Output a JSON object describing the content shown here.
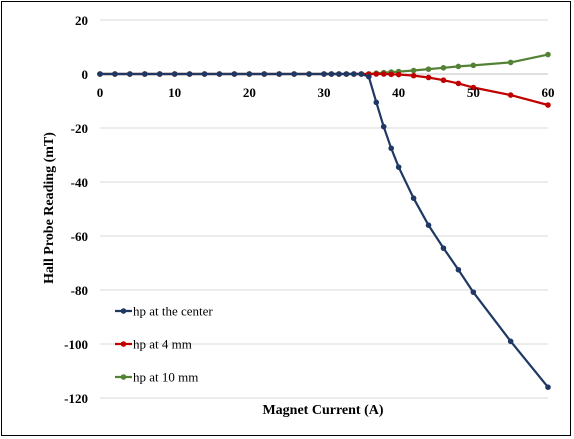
{
  "chart_data": {
    "type": "line",
    "xlabel": "Magnet Current (A)",
    "ylabel": "Hall Probe Reading (mT)",
    "xlim": [
      0,
      60
    ],
    "ylim": [
      -120,
      20
    ],
    "xticks": [
      "0",
      "10",
      "20",
      "30",
      "40",
      "50",
      "60"
    ],
    "yticks": [
      "20",
      "0",
      "-20",
      "-40",
      "-60",
      "-80",
      "-100",
      "-120"
    ],
    "grid": "horizontal",
    "legend_placement": "lower-left",
    "series": [
      {
        "name": "hp at the center",
        "color": "#1f3864",
        "x": [
          0,
          2,
          4,
          6,
          8,
          10,
          12,
          14,
          16,
          18,
          20,
          22,
          24,
          26,
          28,
          30,
          31,
          32,
          33,
          34,
          35,
          36,
          37,
          38,
          39,
          40,
          42,
          44,
          46,
          48,
          50,
          55,
          60
        ],
        "y": [
          0,
          0,
          0,
          0,
          0,
          0,
          0,
          0,
          0,
          0,
          0,
          0,
          0,
          0,
          0,
          0,
          0,
          0,
          0,
          0,
          0,
          -1,
          -10.5,
          -19.5,
          -27.5,
          -34.5,
          -46,
          -56,
          -64.5,
          -72.5,
          -80.8,
          -99,
          -116
        ]
      },
      {
        "name": "hp at 4 mm",
        "color": "#c00000",
        "x": [
          0,
          2,
          4,
          6,
          8,
          10,
          12,
          14,
          16,
          18,
          20,
          22,
          24,
          26,
          28,
          30,
          31,
          32,
          33,
          34,
          35,
          36,
          37,
          38,
          39,
          40,
          42,
          44,
          46,
          48,
          50,
          55,
          60
        ],
        "y": [
          0,
          0,
          0,
          0,
          0,
          0,
          0,
          0,
          0,
          0,
          0,
          0,
          0,
          0,
          0,
          0,
          0,
          0,
          0,
          0,
          0,
          0,
          0,
          0,
          -0.1,
          -0.2,
          -0.6,
          -1.3,
          -2.3,
          -3.5,
          -5,
          -7.8,
          -11.5
        ]
      },
      {
        "name": "hp at 10 mm",
        "color": "#548235",
        "x": [
          0,
          2,
          4,
          6,
          8,
          10,
          12,
          14,
          16,
          18,
          20,
          22,
          24,
          26,
          28,
          30,
          31,
          32,
          33,
          34,
          35,
          36,
          37,
          38,
          39,
          40,
          42,
          44,
          46,
          48,
          50,
          55,
          60
        ],
        "y": [
          0,
          0,
          0,
          0,
          0,
          0,
          0,
          0,
          0,
          0,
          0,
          0,
          0,
          0,
          0,
          0,
          0,
          0,
          0,
          0,
          0,
          0,
          0.3,
          0.5,
          0.7,
          0.9,
          1.3,
          1.8,
          2.3,
          2.8,
          3.2,
          4.3,
          7.2
        ]
      }
    ]
  }
}
